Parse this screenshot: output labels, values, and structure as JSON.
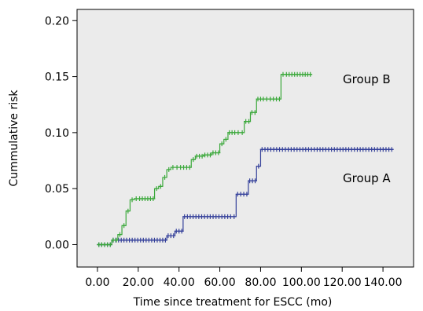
{
  "chart_data": {
    "type": "line",
    "xlabel": "Time since treatment for ESCC (mo)",
    "ylabel": "Cummulative risk",
    "xlim": [
      -10,
      155
    ],
    "ylim": [
      -0.02,
      0.21
    ],
    "x_ticks": [
      "0.00",
      "20.00",
      "40.00",
      "60.00",
      "80.00",
      "100.00",
      "120.00",
      "140.00"
    ],
    "y_ticks": [
      "0.00",
      "0.05",
      "0.10",
      "0.15",
      "0.20"
    ],
    "plot_background": "#ebebeb",
    "grid": false,
    "series": [
      {
        "name": "Group A",
        "color": "#34409a",
        "x": [
          0,
          7,
          15,
          30,
          34,
          38,
          42,
          56,
          66,
          68,
          74,
          78,
          80,
          100,
          145
        ],
        "y": [
          0.0,
          0.004,
          0.004,
          0.004,
          0.008,
          0.012,
          0.025,
          0.025,
          0.025,
          0.045,
          0.057,
          0.07,
          0.085,
          0.085,
          0.085
        ]
      },
      {
        "name": "Group B",
        "color": "#3aa83a",
        "x": [
          0,
          7,
          10,
          12,
          14,
          16,
          18,
          20,
          24,
          28,
          30,
          32,
          34,
          36,
          38,
          40,
          46,
          48,
          52,
          56,
          60,
          62,
          64,
          68,
          70,
          72,
          75,
          78,
          82,
          84,
          90,
          92,
          100,
          105
        ],
        "y": [
          0.0,
          0.004,
          0.009,
          0.017,
          0.03,
          0.04,
          0.041,
          0.041,
          0.041,
          0.05,
          0.052,
          0.06,
          0.067,
          0.069,
          0.069,
          0.069,
          0.076,
          0.079,
          0.08,
          0.082,
          0.09,
          0.094,
          0.1,
          0.1,
          0.1,
          0.11,
          0.118,
          0.13,
          0.13,
          0.13,
          0.152,
          0.152,
          0.152,
          0.152
        ]
      }
    ],
    "annotations": [
      "Group B",
      "Group A"
    ]
  }
}
